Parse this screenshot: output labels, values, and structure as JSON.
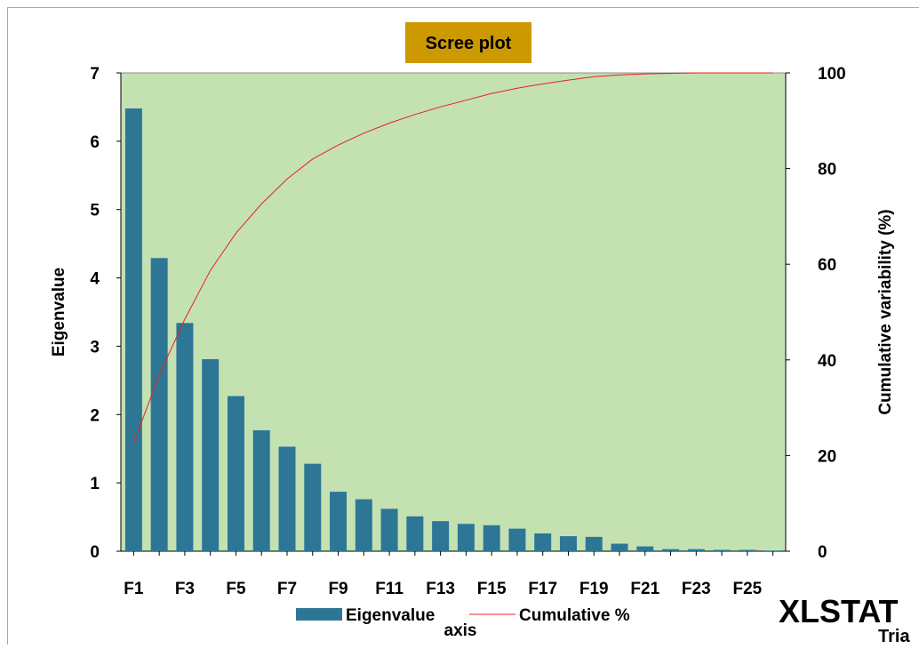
{
  "chart_data": {
    "type": "bar",
    "title": "Scree plot",
    "xlabel": "axis",
    "ylabel": "Eigenvalue",
    "y2label": "Cumulative variability (%)",
    "categories": [
      "F1",
      "F2",
      "F3",
      "F4",
      "F5",
      "F6",
      "F7",
      "F8",
      "F9",
      "F10",
      "F11",
      "F12",
      "F13",
      "F14",
      "F15",
      "F16",
      "F17",
      "F18",
      "F19",
      "F20",
      "F21",
      "F22",
      "F23",
      "F24",
      "F25",
      "F26"
    ],
    "tick_labels": [
      "F1",
      "F3",
      "F5",
      "F7",
      "F9",
      "F11",
      "F13",
      "F15",
      "F17",
      "F19",
      "F21",
      "F23",
      "F25"
    ],
    "ylim": [
      0,
      7
    ],
    "y_ticks": [
      "0",
      "1",
      "2",
      "3",
      "4",
      "5",
      "6",
      "7"
    ],
    "y2lim": [
      0,
      100
    ],
    "y2_ticks": [
      "0",
      "20",
      "40",
      "60",
      "80",
      "100"
    ],
    "series": [
      {
        "name": "Eigenvalue",
        "type": "bar",
        "axis": "left",
        "values": [
          6.48,
          4.29,
          3.34,
          2.81,
          2.27,
          1.77,
          1.53,
          1.28,
          0.87,
          0.76,
          0.62,
          0.51,
          0.44,
          0.4,
          0.38,
          0.33,
          0.26,
          0.22,
          0.21,
          0.11,
          0.07,
          0.03,
          0.03,
          0.02,
          0.02,
          0.01
        ]
      },
      {
        "name": "Cumulative %",
        "type": "line",
        "axis": "right",
        "values": [
          22.6,
          36.9,
          48.5,
          58.7,
          66.5,
          72.6,
          77.8,
          82.0,
          84.9,
          87.4,
          89.5,
          91.3,
          92.9,
          94.3,
          95.7,
          96.8,
          97.7,
          98.5,
          99.2,
          99.6,
          99.8,
          99.9,
          100.0,
          100.0,
          100.0,
          100.0
        ]
      }
    ],
    "grid": false,
    "legend": "bottom-center",
    "colors": {
      "bar": "#2e7696",
      "line": "#e8211c",
      "plot_background": "#c4e1b2",
      "title_background": "#cc9900",
      "frame_border": "#aaaaaa"
    }
  },
  "branding": {
    "logo_text": "XLSTAT",
    "logo_subtext": "Tria",
    "logo_color": "#f0b08a"
  }
}
